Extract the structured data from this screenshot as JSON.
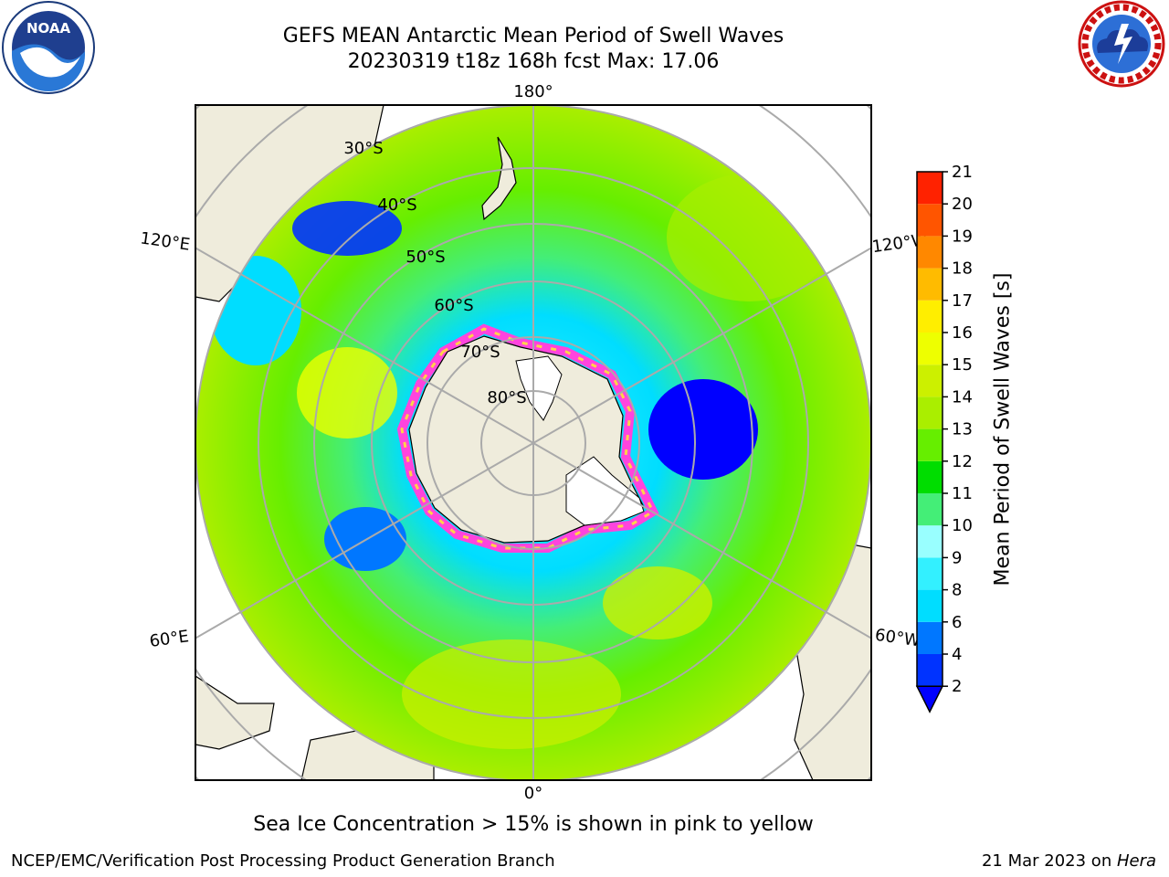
{
  "header": {
    "title_line1": "GEFS MEAN Antarctic Mean Period of Swell Waves",
    "title_line2": "20230319 t18z 168h fcst   Max: 17.06"
  },
  "logos": {
    "left": {
      "icon": "noaa-logo-icon",
      "text": "NOAA",
      "ring_text": "NATIONAL OCEANIC AND ATMOSPHERIC ADMINISTRATION · U.S. DEPARTMENT OF COMMERCE"
    },
    "right": {
      "icon": "nws-logo-icon",
      "ring_text": "NATIONAL WEATHER SERVICE"
    }
  },
  "map": {
    "projection": "south-polar-stereographic",
    "longitude_labels": {
      "top": "180°",
      "bottom": "0°",
      "left_upper": "120°E",
      "left_lower": "60°E",
      "right_upper": "120°W",
      "right_lower": "60°W"
    },
    "latitude_labels": [
      "30°S",
      "40°S",
      "50°S",
      "60°S",
      "70°S",
      "80°S"
    ],
    "land_color": "#efecdc",
    "ice_colors": [
      "#ff44dd",
      "#ffd24a"
    ]
  },
  "colorbar": {
    "label": "Mean Period of Swell Waves [s]",
    "ticks": [
      "2",
      "4",
      "6",
      "8",
      "9",
      "10",
      "11",
      "12",
      "13",
      "14",
      "15",
      "16",
      "17",
      "18",
      "19",
      "20",
      "21"
    ],
    "colors": [
      "#0033ff",
      "#0077ff",
      "#00ddff",
      "#33f0ff",
      "#99ffff",
      "#44ee77",
      "#00dd00",
      "#66ee00",
      "#aaee00",
      "#ccf000",
      "#eeff00",
      "#ffee00",
      "#ffbb00",
      "#ff8800",
      "#ff5500",
      "#ff2200"
    ],
    "extend_color": "#0000ff",
    "max_value": 17.06
  },
  "caption": "Sea Ice Concentration > 15% is shown in pink to yellow",
  "footer": {
    "left": "NCEP/EMC/Verification Post Processing Product Generation Branch",
    "right_date": "21 Mar 2023 on ",
    "right_host": "Hera"
  }
}
